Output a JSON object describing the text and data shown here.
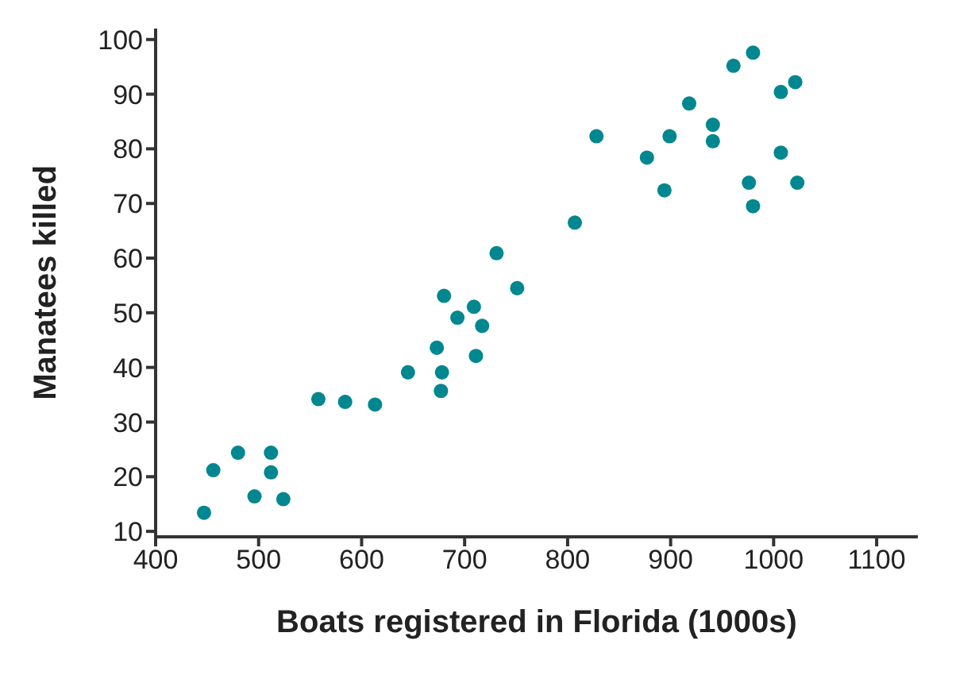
{
  "chart_data": {
    "type": "scatter",
    "xlabel": "Boats registered in Florida (1000s)",
    "ylabel": "Manatees killed",
    "x": [
      447,
      456,
      480,
      512,
      512,
      496,
      524,
      558,
      584,
      613,
      645,
      673,
      678,
      677,
      680,
      693,
      709,
      717,
      711,
      731,
      751,
      807,
      828,
      877,
      899,
      894,
      918,
      941,
      941,
      961,
      980,
      976,
      980,
      1007,
      1021,
      1007,
      1023
    ],
    "series": [
      {
        "color": "#00878f",
        "values": [
          13.4,
          21.2,
          24.4,
          24.4,
          20.8,
          16.4,
          15.9,
          34.2,
          33.7,
          33.2,
          39.1,
          43.6,
          39.1,
          35.7,
          53.1,
          49.1,
          51.1,
          47.6,
          42.1,
          60.9,
          54.5,
          66.5,
          82.3,
          78.4,
          82.3,
          72.4,
          88.3,
          84.4,
          81.4,
          95.2,
          97.6,
          73.8,
          69.5,
          90.4,
          92.2,
          79.3,
          73.8
        ]
      }
    ],
    "xlim": [
      400,
      1140
    ],
    "xticks": [
      400,
      500,
      600,
      700,
      800,
      900,
      1000,
      1100
    ],
    "ylim": [
      9,
      102
    ],
    "yticks": [
      10,
      20,
      30,
      40,
      50,
      60,
      70,
      80,
      90,
      100
    ],
    "marker": "circle"
  }
}
